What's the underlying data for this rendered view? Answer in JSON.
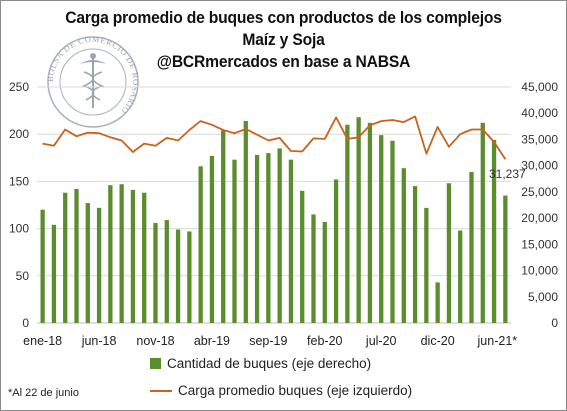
{
  "header": {
    "line1": "Carga promedio de buques con productos de los complejos",
    "line2": "Maíz y Soja",
    "line3": "@BCRmercados en base a NABSA"
  },
  "seal": {
    "ring_text": "BOLSA DE COMERCIO DE ROSARIO"
  },
  "footnote": "*Al 22 de junio",
  "legend": {
    "bars": "Cantidad de buques (eje derecho)",
    "line": "Carga promedio buques (eje izquierdo)"
  },
  "colors": {
    "bars": "#5b8c2e",
    "line": "#c8631d",
    "grid": "#d9d9d9"
  },
  "chart_data": {
    "type": "bar",
    "x_tick_labels": [
      "ene-18",
      "jun-18",
      "nov-18",
      "abr-19",
      "sep-19",
      "feb-20",
      "jul-20",
      "dic-20",
      "jun-21*"
    ],
    "y_left_ticks": [
      "0",
      "50",
      "100",
      "150",
      "200",
      "250"
    ],
    "y_right_ticks": [
      "0",
      "5,000",
      "10,000",
      "15,000",
      "20,000",
      "25,000",
      "30,000",
      "35,000",
      "40,000",
      "45,000"
    ],
    "ylim_left": [
      0,
      250
    ],
    "ylim_right": [
      0,
      45000
    ],
    "grid": "horizontal",
    "legend_position": "bottom",
    "annotation": "31,237",
    "series": [
      {
        "name": "Cantidad de buques (eje derecho)",
        "kind": "bar",
        "axis": "left",
        "values": [
          120,
          104,
          138,
          142,
          127,
          122,
          146,
          147,
          141,
          138,
          106,
          109,
          99,
          97,
          166,
          177,
          204,
          173,
          214,
          178,
          180,
          185,
          173,
          140,
          115,
          107,
          152,
          210,
          218,
          212,
          199,
          193,
          164,
          145,
          122,
          43,
          148,
          98,
          160,
          212,
          194,
          135
        ]
      },
      {
        "name": "Carga promedio buques (eje izquierdo)",
        "kind": "line",
        "axis": "right",
        "values": [
          34200,
          33800,
          36900,
          35600,
          36300,
          36200,
          35400,
          34800,
          32600,
          34200,
          33800,
          35300,
          34800,
          36800,
          38500,
          37800,
          36800,
          36200,
          37000,
          35900,
          34800,
          35300,
          32800,
          32700,
          35200,
          35100,
          39200,
          35100,
          35400,
          37700,
          38500,
          38700,
          38300,
          39400,
          32300,
          37400,
          33600,
          36000,
          36900,
          36900,
          34500,
          31237
        ]
      }
    ]
  }
}
